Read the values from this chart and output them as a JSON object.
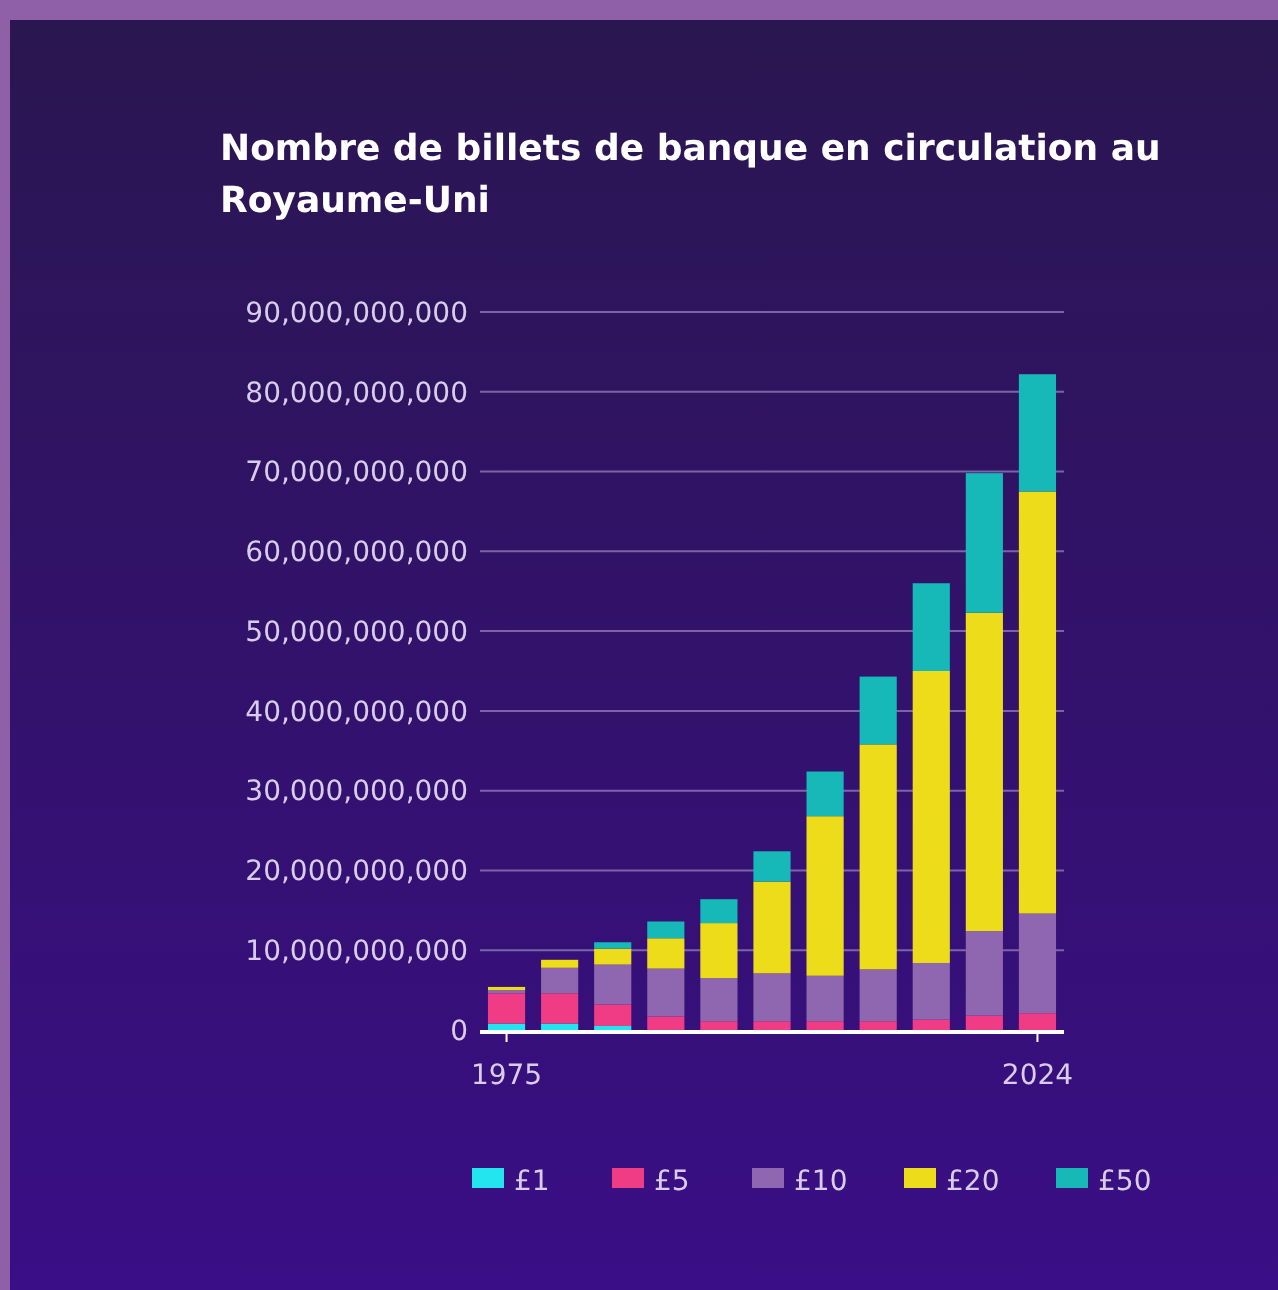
{
  "chart_data": {
    "type": "bar",
    "stacked": true,
    "title": "Nombre de billets de banque en circulation au Royaume-Uni",
    "categories": [
      "1975",
      null,
      null,
      null,
      null,
      null,
      null,
      null,
      null,
      null,
      "2024"
    ],
    "series": [
      {
        "name": "£1",
        "color": "#22e5f0",
        "values": [
          800000000,
          800000000,
          500000000,
          0,
          0,
          0,
          0,
          0,
          0,
          0,
          0
        ]
      },
      {
        "name": "£5",
        "color": "#f03c84",
        "values": [
          3800000000,
          3800000000,
          2700000000,
          1700000000,
          1100000000,
          1100000000,
          1100000000,
          1100000000,
          1300000000,
          1800000000,
          2100000000
        ]
      },
      {
        "name": "£10",
        "color": "#8e67b0",
        "values": [
          400000000,
          3200000000,
          5000000000,
          6000000000,
          5400000000,
          6000000000,
          5700000000,
          6500000000,
          7100000000,
          10600000000,
          12500000000
        ]
      },
      {
        "name": "£20",
        "color": "#ecdc1a",
        "values": [
          400000000,
          1000000000,
          2000000000,
          3800000000,
          6900000000,
          11500000000,
          20000000000,
          28200000000,
          36600000000,
          39900000000,
          52900000000
        ]
      },
      {
        "name": "£50",
        "color": "#16b8b8",
        "values": [
          0,
          0,
          800000000,
          2100000000,
          3000000000,
          3800000000,
          5600000000,
          8500000000,
          11000000000,
          17500000000,
          14700000000
        ]
      }
    ],
    "ylim": [
      0,
      90000000000
    ],
    "yticks": [
      {
        "value": 0,
        "label": "0"
      },
      {
        "value": 10000000000,
        "label": "10,000,000,000"
      },
      {
        "value": 20000000000,
        "label": "20,000,000,000"
      },
      {
        "value": 30000000000,
        "label": "30,000,000,000"
      },
      {
        "value": 40000000000,
        "label": "40,000,000,000"
      },
      {
        "value": 50000000000,
        "label": "50,000,000,000"
      },
      {
        "value": 60000000000,
        "label": "60,000,000,000"
      },
      {
        "value": 70000000000,
        "label": "70,000,000,000"
      },
      {
        "value": 80000000000,
        "label": "80,000,000,000"
      },
      {
        "value": 90000000000,
        "label": "90,000,000,000"
      }
    ],
    "grid": "y",
    "legend": "bottom"
  }
}
